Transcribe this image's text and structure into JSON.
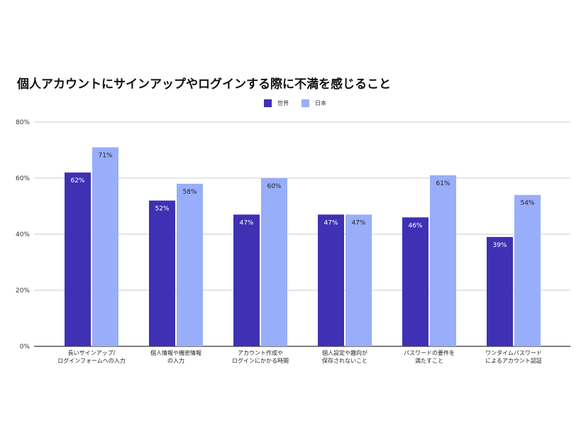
{
  "chart_data": {
    "type": "bar",
    "title": "個人アカウントにサインアップやログインする際に不満を感じること",
    "categories": [
      [
        "長いサインアップ/",
        "ログインフォームへの入力"
      ],
      [
        "個人情報や機密情報",
        "の入力"
      ],
      [
        "アカウント作成や",
        "ログインにかかる時間"
      ],
      [
        "個人設定や趣向が",
        "保存されないこと"
      ],
      [
        "パスワードの要件を",
        "満たすこと"
      ],
      [
        "ワンタイムパスワード",
        "によるアカウント認証"
      ]
    ],
    "series": [
      {
        "name": "世界",
        "color": "#3f30b4",
        "values": [
          62,
          52,
          47,
          47,
          46,
          39
        ]
      },
      {
        "name": "日本",
        "color": "#98aefa",
        "values": [
          71,
          58,
          60,
          47,
          61,
          54
        ]
      }
    ],
    "ylim": [
      0,
      80
    ],
    "yticks": [
      "0%",
      "20%",
      "40%",
      "60%",
      "80%"
    ],
    "value_suffix": "%",
    "grid": true,
    "legend_position": "top-center"
  }
}
